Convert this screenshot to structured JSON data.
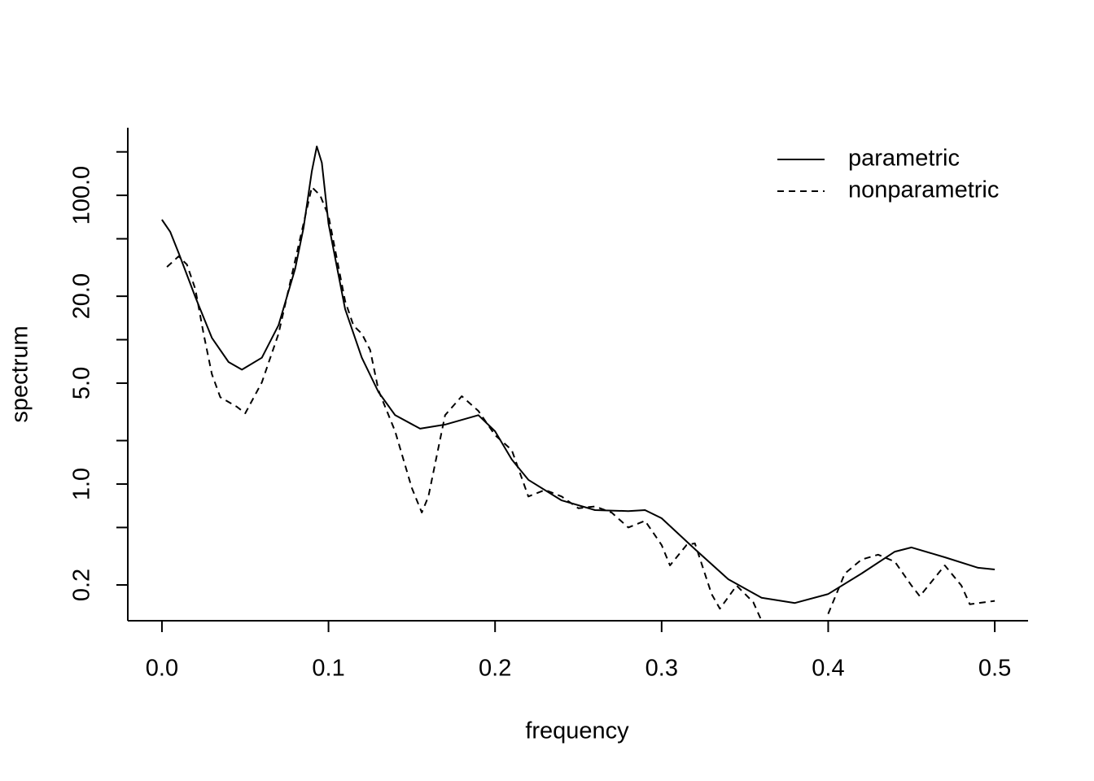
{
  "chart_data": {
    "type": "line",
    "x_label": "frequency",
    "y_label": "spectrum",
    "log_y": true,
    "xlim": [
      -0.0205,
      0.52
    ],
    "ylim": [
      0.113,
      294
    ],
    "xticks": [
      {
        "value": 0,
        "label": "0.0"
      },
      0.1,
      0.2,
      0.3,
      0.4,
      0.5
    ],
    "yticks": [
      0.2,
      {
        "value": 1,
        "label": "1.0"
      },
      {
        "value": 5,
        "label": "5.0"
      },
      {
        "value": 20,
        "label": "20.0"
      },
      {
        "value": 100,
        "label": "100.0"
      }
    ],
    "yminorticks": [
      0.5,
      2,
      10,
      50,
      200
    ],
    "legend_position": "top-right",
    "series": [
      {
        "name": "parametric",
        "color": "#000000",
        "linestyle": "solid",
        "x": [
          0,
          0.005,
          0.01,
          0.02,
          0.03,
          0.04,
          0.048,
          0.06,
          0.07,
          0.08,
          0.085,
          0.09,
          0.093,
          0.096,
          0.1,
          0.11,
          0.12,
          0.13,
          0.14,
          0.155,
          0.17,
          0.19,
          0.2,
          0.21,
          0.22,
          0.24,
          0.26,
          0.28,
          0.29,
          0.3,
          0.32,
          0.34,
          0.36,
          0.38,
          0.4,
          0.42,
          0.44,
          0.45,
          0.47,
          0.49,
          0.5
        ],
        "values": [
          67.8,
          55.8,
          40,
          19.8,
          10.3,
          7.0,
          6.2,
          7.5,
          12.6,
          31,
          59.5,
          147,
          218,
          168,
          63.5,
          16.3,
          7.5,
          4.33,
          3.0,
          2.42,
          2.58,
          3.0,
          2.32,
          1.48,
          1.07,
          0.77,
          0.66,
          0.65,
          0.66,
          0.58,
          0.354,
          0.219,
          0.163,
          0.15,
          0.173,
          0.24,
          0.34,
          0.364,
          0.311,
          0.263,
          0.256
        ]
      },
      {
        "name": "nonparametric",
        "color": "#000000",
        "linestyle": "dashed",
        "x": [
          0.003,
          0.01,
          0.015,
          0.02,
          0.025,
          0.03,
          0.035,
          0.045,
          0.05,
          0.06,
          0.07,
          0.08,
          0.09,
          0.095,
          0.1,
          0.11,
          0.115,
          0.12,
          0.125,
          0.13,
          0.14,
          0.15,
          0.156,
          0.16,
          0.17,
          0.18,
          0.19,
          0.2,
          0.21,
          0.22,
          0.23,
          0.24,
          0.25,
          0.26,
          0.27,
          0.28,
          0.29,
          0.3,
          0.305,
          0.315,
          0.32,
          0.33,
          0.335,
          0.345,
          0.355,
          0.36,
          0.37,
          0.38,
          0.39,
          0.4,
          0.41,
          0.42,
          0.43,
          0.44,
          0.45,
          0.455,
          0.47,
          0.48,
          0.485,
          0.5
        ],
        "values": [
          31.9,
          37.8,
          33.2,
          22.5,
          11.0,
          5.77,
          4.0,
          3.43,
          3.09,
          5.06,
          11.0,
          35.4,
          114,
          100,
          72,
          18.5,
          12.5,
          11,
          8.5,
          4.45,
          2.32,
          0.94,
          0.635,
          0.82,
          3.0,
          4.06,
          3.21,
          2.18,
          1.72,
          0.82,
          0.91,
          0.82,
          0.68,
          0.7,
          0.635,
          0.5,
          0.557,
          0.378,
          0.273,
          0.378,
          0.388,
          0.173,
          0.137,
          0.198,
          0.152,
          0.113,
          null,
          null,
          null,
          0.126,
          0.24,
          0.3,
          0.324,
          0.29,
          0.198,
          0.167,
          0.273,
          0.198,
          0.147,
          0.155
        ]
      }
    ]
  }
}
